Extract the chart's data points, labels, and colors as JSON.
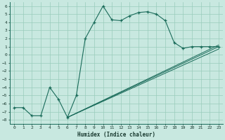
{
  "xlabel": "Humidex (Indice chaleur)",
  "bg_color": "#c8e8e0",
  "grid_color": "#99ccbb",
  "line_color": "#1a6b5a",
  "xlim": [
    -0.5,
    23.5
  ],
  "ylim": [
    -8.5,
    6.5
  ],
  "xticks": [
    0,
    1,
    2,
    3,
    4,
    5,
    6,
    7,
    8,
    9,
    10,
    11,
    12,
    13,
    14,
    15,
    16,
    17,
    18,
    19,
    20,
    21,
    22,
    23
  ],
  "yticks": [
    -8,
    -7,
    -6,
    -5,
    -4,
    -3,
    -2,
    -1,
    0,
    1,
    2,
    3,
    4,
    5,
    6
  ],
  "main_x": [
    0,
    1,
    2,
    3,
    4,
    5,
    6,
    7,
    8,
    9,
    10,
    11,
    12,
    13,
    14,
    15,
    16,
    17,
    18,
    19,
    20,
    21,
    22,
    23
  ],
  "main_y": [
    -6.5,
    -6.5,
    -7.5,
    -7.5,
    -4.0,
    -5.5,
    -7.7,
    -5.0,
    2.0,
    4.0,
    6.0,
    4.3,
    4.2,
    4.8,
    5.2,
    5.3,
    5.0,
    4.2,
    1.5,
    0.8,
    1.0,
    1.0,
    1.0,
    1.0
  ],
  "fan_lines": [
    {
      "x": [
        6,
        23
      ],
      "y": [
        -7.7,
        1.0
      ]
    },
    {
      "x": [
        6,
        23
      ],
      "y": [
        -7.7,
        1.2
      ]
    },
    {
      "x": [
        6,
        23
      ],
      "y": [
        -7.7,
        0.7
      ]
    }
  ]
}
